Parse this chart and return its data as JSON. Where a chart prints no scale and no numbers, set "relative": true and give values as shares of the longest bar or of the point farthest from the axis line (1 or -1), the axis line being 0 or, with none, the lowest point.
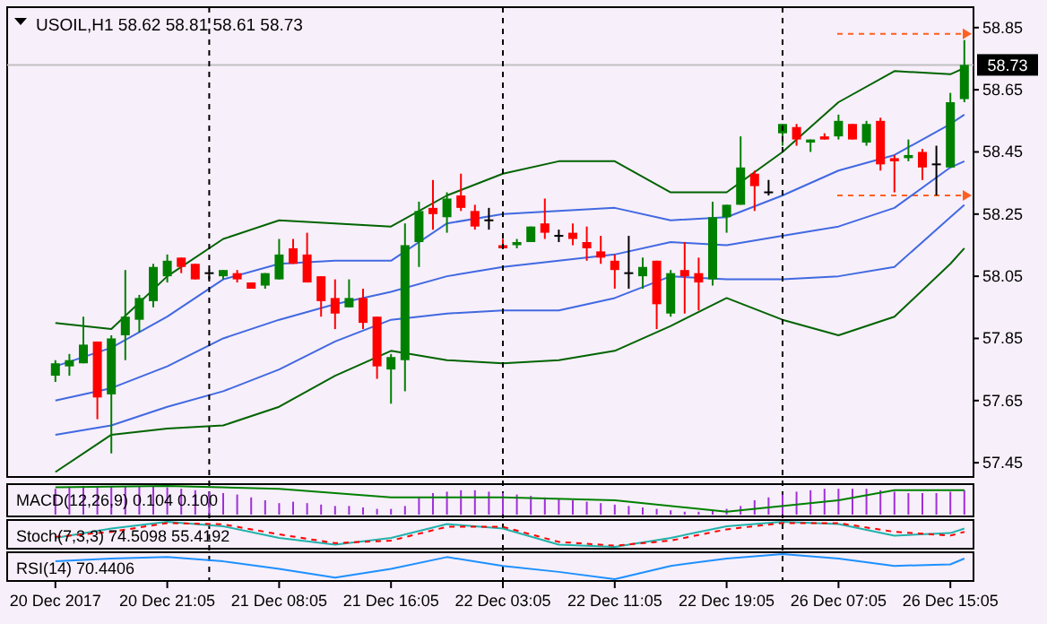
{
  "chart_data": [
    {
      "type": "candlestick",
      "title": "USOIL,H1  58.62 58.81 58.61 58.73",
      "categories": [
        "20 Dec 2017",
        null,
        null,
        null,
        null,
        null,
        null,
        null,
        "20 Dec 21:05",
        null,
        null,
        null,
        null,
        null,
        null,
        null,
        "21 Dec 08:05",
        null,
        null,
        null,
        null,
        null,
        null,
        null,
        "21 Dec 16:05",
        null,
        null,
        null,
        null,
        null,
        null,
        null,
        "22 Dec 03:05",
        null,
        null,
        null,
        null,
        null,
        null,
        null,
        "22 Dec 11:05",
        null,
        null,
        null,
        null,
        null,
        null,
        null,
        "22 Dec 19:05",
        null,
        null,
        null,
        null,
        null,
        null,
        null,
        "26 Dec 07:05",
        null,
        null,
        null,
        null,
        null,
        null,
        null,
        "26 Dec 15:05",
        null
      ],
      "ohlc": [
        [
          57.73,
          57.78,
          57.71,
          57.77
        ],
        [
          57.76,
          57.8,
          57.73,
          57.78
        ],
        [
          57.77,
          57.92,
          57.77,
          57.83
        ],
        [
          57.84,
          57.84,
          57.59,
          57.66
        ],
        [
          57.67,
          57.86,
          57.48,
          57.85
        ],
        [
          57.86,
          58.07,
          57.78,
          57.92
        ],
        [
          57.91,
          57.99,
          57.87,
          57.98
        ],
        [
          57.97,
          58.09,
          57.95,
          58.08
        ],
        [
          58.05,
          58.12,
          58.03,
          58.1
        ],
        [
          58.11,
          58.11,
          58.06,
          58.08
        ],
        [
          58.09,
          58.09,
          58.04,
          58.04
        ],
        [
          58.06,
          58.07,
          58.04,
          58.06
        ],
        [
          58.05,
          58.07,
          58.04,
          58.07
        ],
        [
          58.06,
          58.07,
          58.03,
          58.04
        ],
        [
          58.03,
          58.03,
          58.01,
          58.01
        ],
        [
          58.02,
          58.06,
          58.01,
          58.06
        ],
        [
          58.04,
          58.17,
          58.04,
          58.12
        ],
        [
          58.14,
          58.17,
          58.09,
          58.09
        ],
        [
          58.12,
          58.19,
          58.03,
          58.03
        ],
        [
          58.05,
          58.05,
          57.92,
          57.97
        ],
        [
          57.98,
          58.04,
          57.88,
          57.93
        ],
        [
          57.95,
          58.04,
          57.95,
          57.98
        ],
        [
          57.98,
          58.01,
          57.88,
          57.9
        ],
        [
          57.92,
          57.92,
          57.72,
          57.76
        ],
        [
          57.75,
          57.8,
          57.64,
          57.79
        ],
        [
          57.78,
          58.22,
          57.68,
          58.15
        ],
        [
          58.16,
          58.29,
          58.08,
          58.26
        ],
        [
          58.27,
          58.36,
          58.2,
          58.25
        ],
        [
          58.24,
          58.32,
          58.19,
          58.3
        ],
        [
          58.31,
          58.38,
          58.26,
          58.27
        ],
        [
          58.26,
          58.28,
          58.2,
          58.21
        ],
        [
          58.23,
          58.27,
          58.2,
          58.23
        ],
        [
          58.15,
          58.17,
          58.14,
          58.14
        ],
        [
          58.15,
          58.17,
          58.14,
          58.16
        ],
        [
          58.16,
          58.21,
          58.16,
          58.21
        ],
        [
          58.22,
          58.3,
          58.17,
          58.19
        ],
        [
          58.18,
          58.2,
          58.16,
          58.18
        ],
        [
          58.19,
          58.22,
          58.15,
          58.17
        ],
        [
          58.16,
          58.21,
          58.1,
          58.14
        ],
        [
          58.13,
          58.18,
          58.09,
          58.11
        ],
        [
          58.1,
          58.12,
          58.01,
          58.07
        ],
        [
          58.06,
          58.18,
          58.01,
          58.06
        ],
        [
          58.05,
          58.11,
          58.01,
          58.08
        ],
        [
          58.1,
          58.1,
          57.88,
          57.96
        ],
        [
          57.93,
          58.07,
          57.92,
          58.06
        ],
        [
          58.07,
          58.16,
          57.93,
          58.05
        ],
        [
          58.06,
          58.11,
          57.94,
          58.03
        ],
        [
          58.04,
          58.29,
          58.02,
          58.24
        ],
        [
          58.24,
          58.28,
          58.19,
          58.28
        ],
        [
          58.28,
          58.5,
          58.28,
          58.4
        ],
        [
          58.38,
          58.39,
          58.26,
          58.34
        ],
        [
          58.32,
          58.36,
          58.31,
          58.32
        ],
        [
          58.51,
          58.54,
          58.47,
          58.54
        ],
        [
          58.53,
          58.54,
          58.47,
          58.49
        ],
        [
          58.48,
          58.49,
          58.45,
          58.49
        ],
        [
          58.5,
          58.51,
          58.49,
          58.49
        ],
        [
          58.5,
          58.57,
          58.49,
          58.55
        ],
        [
          58.54,
          58.54,
          58.49,
          58.49
        ],
        [
          58.48,
          58.55,
          58.47,
          58.54
        ],
        [
          58.55,
          58.56,
          58.39,
          58.41
        ],
        [
          58.43,
          58.44,
          58.32,
          58.42
        ],
        [
          58.43,
          58.49,
          58.42,
          58.44
        ],
        [
          58.45,
          58.46,
          58.36,
          58.4
        ],
        [
          58.41,
          58.47,
          58.31,
          58.41
        ],
        [
          58.4,
          58.64,
          58.4,
          58.61
        ],
        [
          58.62,
          58.81,
          58.61,
          58.73
        ]
      ],
      "colors": [
        "#008000",
        "#008000",
        "#008000",
        "#ff0000",
        "#008000",
        "#008000",
        "#008000",
        "#008000",
        "#008000",
        "#ff0000",
        "#ff0000",
        "#000000",
        "#008000",
        "#ff0000",
        "#ff0000",
        "#008000",
        "#008000",
        "#ff0000",
        "#ff0000",
        "#ff0000",
        "#ff0000",
        "#008000",
        "#ff0000",
        "#ff0000",
        "#008000",
        "#008000",
        "#008000",
        "#ff0000",
        "#008000",
        "#ff0000",
        "#ff0000",
        "#000000",
        "#ff0000",
        "#008000",
        "#008000",
        "#ff0000",
        "#000000",
        "#ff0000",
        "#ff0000",
        "#ff0000",
        "#ff0000",
        "#000000",
        "#008000",
        "#ff0000",
        "#008000",
        "#ff0000",
        "#ff0000",
        "#008000",
        "#008000",
        "#008000",
        "#ff0000",
        "#000000",
        "#008000",
        "#ff0000",
        "#008000",
        "#ff0000",
        "#008000",
        "#ff0000",
        "#008000",
        "#ff0000",
        "#ff0000",
        "#008000",
        "#ff0000",
        "#000000",
        "#008000",
        "#008000"
      ],
      "series": [
        {
          "type": "line",
          "color": "#006400",
          "values": [
            57.9,
            null,
            null,
            null,
            57.88,
            null,
            null,
            null,
            58.05,
            null,
            null,
            null,
            58.17,
            null,
            null,
            null,
            58.23,
            null,
            null,
            null,
            58.22,
            null,
            null,
            null,
            58.21,
            null,
            null,
            null,
            58.31,
            null,
            null,
            null,
            58.38,
            null,
            null,
            null,
            58.42,
            null,
            null,
            null,
            58.42,
            null,
            null,
            null,
            58.32,
            null,
            null,
            null,
            58.32,
            null,
            null,
            null,
            58.45,
            null,
            null,
            null,
            58.61,
            null,
            null,
            null,
            58.71,
            null,
            null,
            null,
            58.7,
            58.72
          ]
        },
        {
          "type": "line",
          "color": "#4169e1",
          "values": [
            57.76,
            null,
            null,
            null,
            57.82,
            null,
            null,
            null,
            57.92,
            null,
            null,
            null,
            58.04,
            null,
            null,
            null,
            58.09,
            null,
            null,
            null,
            58.1,
            null,
            null,
            null,
            58.1,
            null,
            null,
            null,
            58.22,
            null,
            null,
            null,
            58.25,
            null,
            null,
            null,
            58.26,
            null,
            null,
            null,
            58.27,
            null,
            null,
            null,
            58.23,
            null,
            null,
            null,
            58.24,
            null,
            null,
            null,
            58.31,
            null,
            null,
            null,
            58.39,
            null,
            null,
            null,
            58.44,
            null,
            null,
            null,
            58.54,
            58.57
          ]
        },
        {
          "type": "line",
          "color": "#4169e1",
          "values": [
            57.65,
            null,
            null,
            null,
            57.69,
            null,
            null,
            null,
            57.76,
            null,
            null,
            null,
            57.85,
            null,
            null,
            null,
            57.91,
            null,
            null,
            null,
            57.96,
            null,
            null,
            null,
            58.0,
            null,
            null,
            null,
            58.05,
            null,
            null,
            null,
            58.08,
            null,
            null,
            null,
            58.1,
            null,
            null,
            null,
            58.12,
            null,
            null,
            null,
            58.16,
            null,
            null,
            null,
            58.15,
            null,
            null,
            null,
            58.18,
            null,
            null,
            null,
            58.21,
            null,
            null,
            null,
            58.27,
            null,
            null,
            null,
            58.4,
            58.42
          ]
        },
        {
          "type": "line",
          "color": "#4169e1",
          "values": [
            57.54,
            null,
            null,
            null,
            57.57,
            null,
            null,
            null,
            57.63,
            null,
            null,
            null,
            57.68,
            null,
            null,
            null,
            57.75,
            null,
            null,
            null,
            57.84,
            null,
            null,
            null,
            57.91,
            null,
            null,
            null,
            57.93,
            null,
            null,
            null,
            57.94,
            null,
            null,
            null,
            57.94,
            null,
            null,
            null,
            57.98,
            null,
            null,
            null,
            58.05,
            null,
            null,
            null,
            58.04,
            null,
            null,
            null,
            58.04,
            null,
            null,
            null,
            58.05,
            null,
            null,
            null,
            58.08,
            null,
            null,
            null,
            58.24,
            58.28
          ]
        },
        {
          "type": "line",
          "color": "#006400",
          "values": [
            57.42,
            null,
            null,
            null,
            57.54,
            null,
            null,
            null,
            57.56,
            null,
            null,
            null,
            57.57,
            null,
            null,
            null,
            57.63,
            null,
            null,
            null,
            57.73,
            null,
            null,
            null,
            57.81,
            null,
            null,
            null,
            57.78,
            null,
            null,
            null,
            57.77,
            null,
            null,
            null,
            57.78,
            null,
            null,
            null,
            57.81,
            null,
            null,
            null,
            57.89,
            null,
            null,
            null,
            57.98,
            null,
            null,
            null,
            57.91,
            null,
            null,
            null,
            57.86,
            null,
            null,
            null,
            57.92,
            null,
            null,
            null,
            58.09,
            58.14
          ]
        }
      ],
      "ref_lines": [
        {
          "axis": "y",
          "value": 58.73,
          "label": "58.73",
          "color": "#c0c0c0",
          "line_style": "solid"
        },
        {
          "axis": "y",
          "value": 58.83,
          "color": "#ff6020",
          "line_style": "dashed"
        },
        {
          "axis": "y",
          "value": 58.31,
          "color": "#ff6020",
          "line_style": "dashed"
        }
      ],
      "grid": "x",
      "ylim": [
        57.41,
        58.91
      ],
      "yticks": [
        57.45,
        57.65,
        57.85,
        58.05,
        58.25,
        58.45,
        58.65,
        58.85
      ]
    },
    {
      "type": "bar",
      "title": "MACD(12,26,9) 0.104 0.100",
      "relative": true,
      "categories": [
        null,
        null,
        null,
        null,
        null,
        null,
        null,
        null,
        null,
        null,
        null,
        null,
        null,
        null,
        null,
        null,
        null,
        null,
        null,
        null,
        null,
        null,
        null,
        null,
        null,
        null,
        null,
        null,
        null,
        null,
        null,
        null,
        null,
        null,
        null,
        null,
        null,
        null,
        null,
        null,
        null,
        null,
        null,
        null,
        null,
        null,
        null,
        null,
        null,
        null,
        null,
        null,
        null,
        null,
        null,
        null,
        null,
        null,
        null,
        null,
        null,
        null,
        null,
        null,
        null,
        null
      ],
      "series": [
        {
          "type": "bar",
          "color": "#a030d8",
          "values": [
            0.9,
            0.95,
            1,
            1,
            1,
            1,
            1,
            1,
            0.95,
            0.9,
            0.85,
            0.8,
            0.75,
            0.7,
            0.6,
            0.5,
            0.4,
            0.45,
            0.4,
            0.35,
            0.3,
            0.3,
            0.25,
            0.2,
            0.2,
            0.3,
            0.6,
            0.75,
            0.8,
            0.85,
            0.85,
            0.8,
            0.75,
            0.7,
            0.65,
            0.6,
            0.55,
            0.5,
            0.45,
            0.4,
            0.35,
            0.3,
            0.25,
            0.2,
            0.15,
            0.1,
            0.1,
            0.15,
            0.2,
            0.3,
            0.5,
            0.6,
            0.7,
            0.8,
            0.85,
            0.9,
            0.9,
            0.9,
            0.9,
            0.85,
            0.8,
            0.75,
            0.75,
            0.75,
            0.8,
            0.85
          ]
        },
        {
          "type": "line",
          "color": "#008000",
          "values": [
            0.95,
            null,
            null,
            null,
            null,
            null,
            null,
            null,
            1,
            null,
            null,
            null,
            null,
            null,
            null,
            null,
            0.9,
            null,
            null,
            null,
            null,
            null,
            null,
            null,
            0.6,
            null,
            null,
            null,
            null,
            null,
            null,
            null,
            0.6,
            null,
            null,
            null,
            null,
            null,
            null,
            null,
            0.5,
            null,
            null,
            null,
            null,
            null,
            null,
            null,
            0.1,
            null,
            null,
            null,
            null,
            null,
            null,
            null,
            0.5,
            null,
            null,
            null,
            0.85,
            null,
            null,
            null,
            null,
            0.85
          ]
        }
      ]
    },
    {
      "type": "line",
      "title": "Stoch(7,3,3) 74.5098 55.4192",
      "relative": true,
      "categories": [
        null,
        null,
        null,
        null,
        null,
        null,
        null,
        null,
        null,
        null,
        null,
        null,
        null,
        null,
        null,
        null,
        null,
        null,
        null,
        null,
        null,
        null,
        null,
        null,
        null,
        null,
        null,
        null,
        null,
        null,
        null,
        null,
        null,
        null,
        null,
        null,
        null,
        null,
        null,
        null,
        null,
        null,
        null,
        null,
        null,
        null,
        null,
        null,
        null,
        null,
        null,
        null,
        null,
        null,
        null,
        null,
        null,
        null,
        null,
        null,
        null,
        null,
        null,
        null,
        null,
        null
      ],
      "series": [
        {
          "color": "#20b2aa",
          "line_style": "solid",
          "values": [
            0.36,
            null,
            null,
            null,
            0.73,
            null,
            null,
            null,
            1,
            null,
            null,
            null,
            0.82,
            null,
            null,
            null,
            0.36,
            null,
            null,
            null,
            0.09,
            null,
            null,
            null,
            0.36,
            null,
            null,
            null,
            0.91,
            null,
            null,
            null,
            0.73,
            null,
            null,
            null,
            0.09,
            null,
            null,
            null,
            0,
            null,
            null,
            null,
            0.36,
            null,
            null,
            null,
            0.82,
            null,
            null,
            null,
            1,
            null,
            null,
            null,
            0.91,
            null,
            null,
            null,
            0.45,
            null,
            null,
            null,
            0.55,
            0.73
          ]
        },
        {
          "color": "#ff0000",
          "line_style": "dashed",
          "values": [
            0.4,
            null,
            null,
            null,
            0.6,
            null,
            null,
            null,
            0.95,
            null,
            null,
            null,
            0.9,
            null,
            null,
            null,
            0.5,
            null,
            null,
            null,
            0.15,
            null,
            null,
            null,
            0.25,
            null,
            null,
            null,
            0.8,
            null,
            null,
            null,
            0.8,
            null,
            null,
            null,
            0.2,
            null,
            null,
            null,
            0.05,
            null,
            null,
            null,
            0.25,
            null,
            null,
            null,
            0.7,
            null,
            null,
            null,
            0.95,
            null,
            null,
            null,
            0.95,
            null,
            null,
            null,
            0.6,
            null,
            null,
            null,
            0.45,
            0.6
          ]
        }
      ]
    },
    {
      "type": "line",
      "title": "RSI(14) 70.4406",
      "relative": true,
      "categories": [
        null,
        null,
        null,
        null,
        null,
        null,
        null,
        null,
        null,
        null,
        null,
        null,
        null,
        null,
        null,
        null,
        null,
        null,
        null,
        null,
        null,
        null,
        null,
        null,
        null,
        null,
        null,
        null,
        null,
        null,
        null,
        null,
        null,
        null,
        null,
        null,
        null,
        null,
        null,
        null,
        null,
        null,
        null,
        null,
        null,
        null,
        null,
        null,
        null,
        null,
        null,
        null,
        null,
        null,
        null,
        null,
        null,
        null,
        null,
        null,
        null,
        null,
        null,
        null,
        null,
        null
      ],
      "series": [
        {
          "color": "#1e90ff",
          "values": [
            0.71,
            null,
            null,
            null,
            0.82,
            null,
            null,
            null,
            0.88,
            null,
            null,
            null,
            0.71,
            null,
            null,
            null,
            0.41,
            null,
            null,
            null,
            0.06,
            null,
            null,
            null,
            0.41,
            null,
            null,
            null,
            0.88,
            null,
            null,
            null,
            0.53,
            null,
            null,
            null,
            0.29,
            null,
            null,
            null,
            0,
            null,
            null,
            null,
            0.53,
            null,
            null,
            null,
            0.82,
            null,
            null,
            null,
            1,
            null,
            null,
            null,
            0.82,
            null,
            null,
            null,
            0.53,
            null,
            null,
            null,
            0.59,
            0.82
          ]
        }
      ]
    }
  ]
}
